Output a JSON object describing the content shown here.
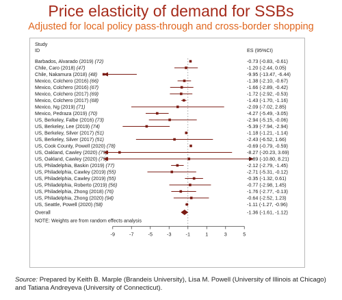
{
  "title": "Price elasticity of demand for SSBs",
  "subtitle": "Adjusted for local policy pass-through and cross-border shopping",
  "source_label": "Source:",
  "source_text": " Prepared by Keith B. Marple (Brandeis University), Lisa M. Powell (University of Illinois at Chicago) and Tatiana Andreyeva (University of Connecticut).",
  "colors": {
    "title": "#a52a1a",
    "subtitle": "#e0661e",
    "marker": "#7a1a12"
  },
  "chart_data": {
    "type": "forest",
    "column_headers": {
      "study_line1": "Study",
      "study_line2": "ID",
      "es": "ES (95%CI)"
    },
    "xticks": [
      -9,
      -7,
      -5,
      -3,
      -1,
      1,
      3,
      5
    ],
    "xlim": [
      -10,
      6
    ],
    "reference_line": -1,
    "note": "NOTE: Weights are from random effects analysis",
    "rows": [
      {
        "study": "Barbados, Alvarado (2019) ",
        "ref": "(72)",
        "es": -0.73,
        "lo": -0.83,
        "hi": -0.61,
        "label": "-0.73 (-0.83, -0.61)"
      },
      {
        "study": "Chile, Caro (2018) ",
        "ref": "(47)",
        "es": -1.2,
        "lo": -2.44,
        "hi": 0.05,
        "label": "-1.20 (-2.44, 0.05)"
      },
      {
        "study": "Chile, Nakamura (2018) ",
        "ref": "(48)",
        "es": -9.95,
        "lo": -13.47,
        "hi": -6.44,
        "label": "-9.95 (-13.47, -6.44)"
      },
      {
        "study": "Mexico, Colchero (2016) ",
        "ref": "(66)",
        "es": -1.38,
        "lo": -2.1,
        "hi": -0.67,
        "label": "-1.38 (-2.10, -0.67)"
      },
      {
        "study": "Mexico, Colchero (2016) ",
        "ref": "(67)",
        "es": -1.66,
        "lo": -2.89,
        "hi": -0.42,
        "label": "-1.66 (-2.89, -0.42)"
      },
      {
        "study": "Mexico, Colchero (2017) ",
        "ref": "(69)",
        "es": -1.72,
        "lo": -2.92,
        "hi": -0.53,
        "label": "-1.72 (-2.92, -0.53)"
      },
      {
        "study": "Mexico, Colchero (2017) ",
        "ref": "(68)",
        "es": -1.43,
        "lo": -1.7,
        "hi": -1.16,
        "label": "-1.43 (-1.70, -1.16)"
      },
      {
        "study": "Mexico, Ng (2019) ",
        "ref": "(71)",
        "es": -2.09,
        "lo": -7.02,
        "hi": 2.85,
        "label": "-2.09 (-7.02, 2.85)"
      },
      {
        "study": "Mexico, Pedraza (2019) ",
        "ref": "(70)",
        "es": -4.27,
        "lo": -5.49,
        "hi": -3.05,
        "label": "-4.27 (-5.49, -3.05)"
      },
      {
        "study": "US, Berkeley, Falbe (2016) ",
        "ref": "(73)",
        "es": -2.94,
        "lo": -5.15,
        "hi": -0.06,
        "label": "-2.94 (-5.15, -0.06)"
      },
      {
        "study": "US, Berkeley, Lee (2019) ",
        "ref": "(74)",
        "es": -5.39,
        "lo": -7.94,
        "hi": -2.94,
        "label": "-5.39 (-7.94, -2.94)"
      },
      {
        "study": "US, Berkeley, Silver (2017) ",
        "ref": "(51)",
        "es": -1.18,
        "lo": -1.21,
        "hi": -1.14,
        "label": "-1.18 (-1.21, -1.14)"
      },
      {
        "study": "US, Berkeley, Silver (2017) ",
        "ref": "(51)",
        "es": -2.43,
        "lo": -6.52,
        "hi": 1.66,
        "label": "-2.43 (-6.52, 1.66)"
      },
      {
        "study": "US, Cook County, Powell (2020) ",
        "ref": "(78)",
        "es": -0.69,
        "lo": -0.79,
        "hi": -0.59,
        "label": "-0.69 (-0.79, -0.59)"
      },
      {
        "study": "US, Oakland, Cawley (2020) ",
        "ref": "(75)",
        "es": -8.27,
        "lo": -20.23,
        "hi": 3.69,
        "label": "-8.27 (-20.23, 3.69)"
      },
      {
        "study": "US, Oakland, Cawley (2020) ",
        "ref": "(75)",
        "es": -0.89,
        "lo": -10.8,
        "hi": 8.21,
        "label": "-0.89 (-10.80, 8.21)"
      },
      {
        "study": "US, Philadelphia, Baskin (2019) ",
        "ref": "(77)",
        "es": -2.12,
        "lo": -2.79,
        "hi": -1.45,
        "label": "-2.12 (-2.79, -1.45)"
      },
      {
        "study": "US, Philadelphia, Cawley (2019) ",
        "ref": "(55)",
        "es": -2.71,
        "lo": -5.31,
        "hi": -0.12,
        "label": "-2.71 (-5.31, -0.12)"
      },
      {
        "study": "US, Philadelphia, Cawley (2019) ",
        "ref": "(55)",
        "es": -0.35,
        "lo": -1.32,
        "hi": 0.61,
        "label": "-0.35 (-1.32, 0.61)"
      },
      {
        "study": "US, Philadelphia, Roberto (2019) ",
        "ref": "(56)",
        "es": -0.77,
        "lo": -2.98,
        "hi": 1.45,
        "label": "-0.77 (-2.98, 1.45)"
      },
      {
        "study": "US, Philadelphia, Zhong (2018) ",
        "ref": "(76)",
        "es": -1.76,
        "lo": -2.77,
        "hi": -0.13,
        "label": "-1.76 (-2.77, -0.13)"
      },
      {
        "study": "US, Philadelphia, Zhong (2020) ",
        "ref": "(94)",
        "es": -0.64,
        "lo": -2.52,
        "hi": 1.23,
        "label": "-0.64 (-2.52, 1.23)"
      },
      {
        "study": "US, Seattle, Powell (2020) ",
        "ref": "(58)",
        "es": -1.11,
        "lo": -1.27,
        "hi": -0.96,
        "label": "-1.11 (-1.27, -0.96)"
      }
    ],
    "overall": {
      "study": "Overall",
      "es": -1.36,
      "lo": -1.61,
      "hi": -1.12,
      "label": "-1.36 (-1.61, -1.12)"
    }
  }
}
